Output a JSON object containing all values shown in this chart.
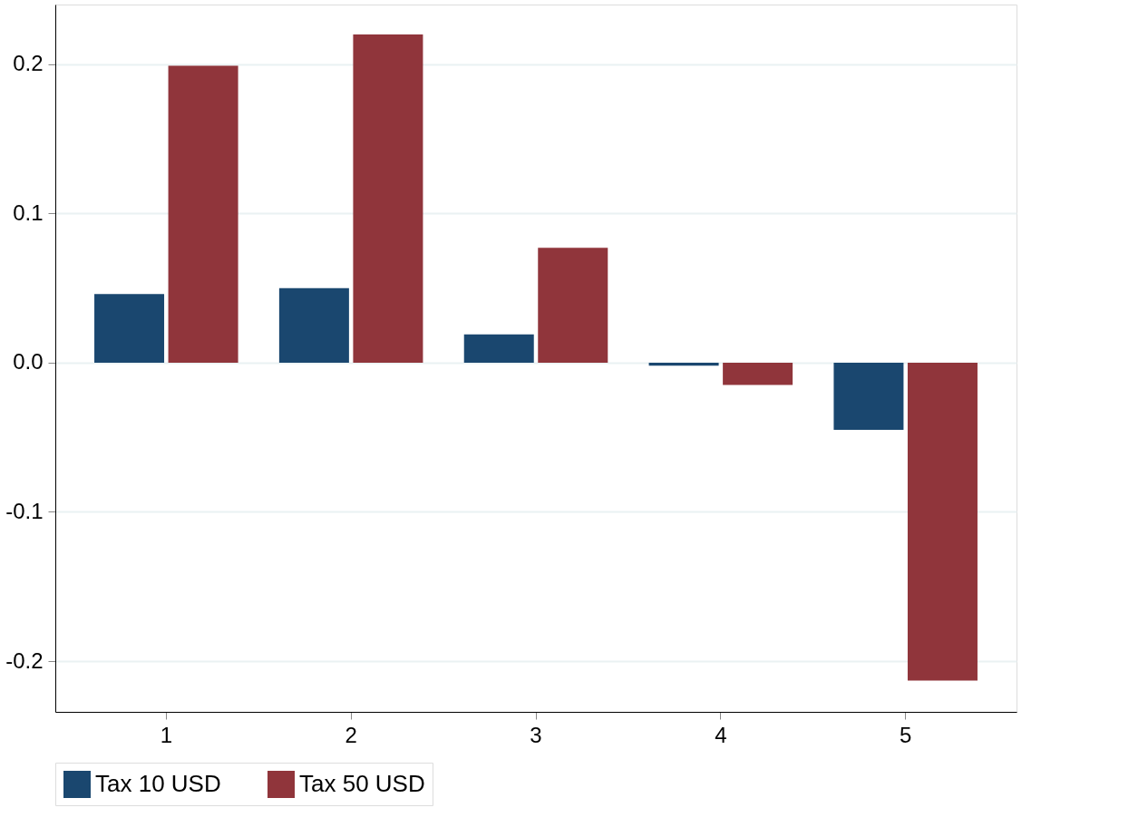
{
  "chart_data": {
    "type": "bar",
    "categories": [
      "1",
      "2",
      "3",
      "4",
      "5"
    ],
    "series": [
      {
        "name": "Tax 10 USD",
        "color": "#1a476f",
        "values": [
          0.046,
          0.05,
          0.019,
          -0.002,
          -0.045
        ]
      },
      {
        "name": "Tax 50 USD",
        "color": "#90353b",
        "values": [
          0.199,
          0.22,
          0.077,
          -0.015,
          -0.213
        ]
      }
    ],
    "ylim": [
      -0.234,
      0.24
    ],
    "yticks": [
      -0.2,
      -0.1,
      {
        "value": 0,
        "label": "0.0"
      },
      0.1,
      0.2
    ],
    "grid": "y",
    "legend": "bottom"
  }
}
